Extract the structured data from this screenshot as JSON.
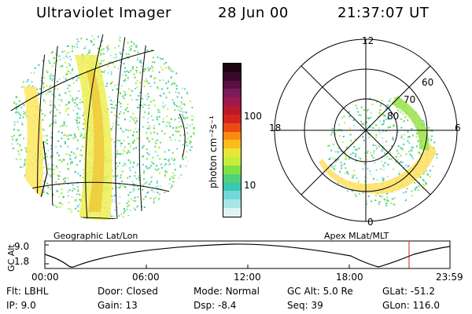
{
  "header": {
    "instrument": "Ultraviolet Imager",
    "date": "28 Jun 00",
    "time": "21:37:07 UT"
  },
  "colorbar": {
    "unit_label": "photon cm⁻²s⁻¹",
    "ticks": [
      "100",
      "10"
    ],
    "colors": [
      "#1a0510",
      "#3a0a2a",
      "#5a0f44",
      "#7a1a5a",
      "#9a1a4a",
      "#b81a2c",
      "#d4221e",
      "#ea4a14",
      "#f88b10",
      "#fbbd1c",
      "#e8e53a",
      "#c4ee3a",
      "#7fe244",
      "#4fd07a",
      "#3ac7b4",
      "#73d8d8",
      "#a8e6e6",
      "#e0f4f4"
    ]
  },
  "maps": {
    "geo_label": "Geographic Lat/Lon",
    "apex_label": "Apex MLat/MLT",
    "polar_labels": {
      "top": "12",
      "left": "18",
      "right": "6",
      "bottom": "0",
      "ring_60": "60",
      "ring_70": "70",
      "ring_80": "80"
    }
  },
  "altitude_plot": {
    "axis_label": "GC Alt",
    "y_top": "9.0",
    "y_bottom": "1.8",
    "x_ticks": [
      "00:00",
      "06:00",
      "12:00",
      "18:00",
      "23:59"
    ],
    "marker_color": "#cc2222"
  },
  "info": {
    "flt_label": "Flt:",
    "flt_value": "LBHL",
    "ip_label": "IP:",
    "ip_value": "9.0",
    "door_label": "Door:",
    "door_value": "Closed",
    "gain_label": "Gain:",
    "gain_value": "13",
    "mode_label": "Mode:",
    "mode_value": "Normal",
    "dsp_label": "Dsp:",
    "dsp_value": "-8.4",
    "gcalt_label": "GC Alt:",
    "gcalt_value": "5.0 Re",
    "seq_label": "Seq:",
    "seq_value": "39",
    "glat_label": "GLat:",
    "glat_value": "-51.2",
    "glon_label": "GLon:",
    "glon_value": "116.0"
  }
}
